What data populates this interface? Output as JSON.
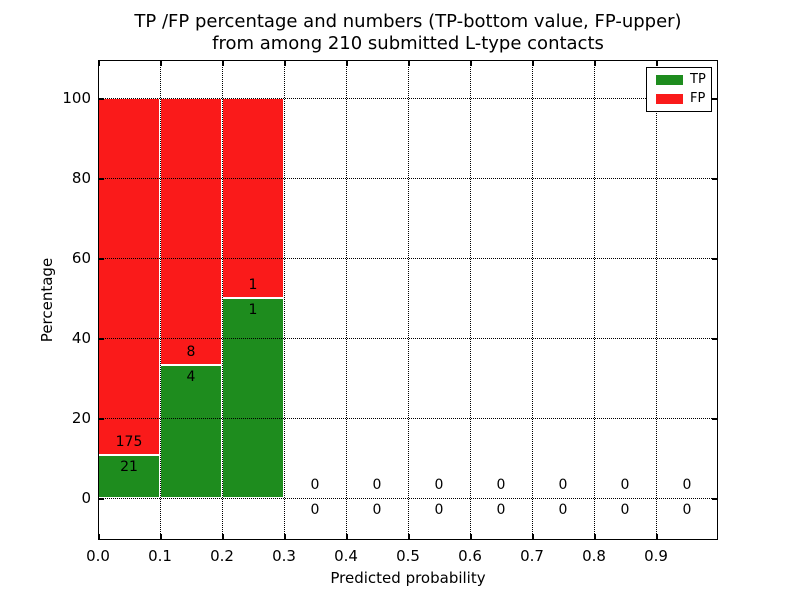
{
  "chart_data": {
    "type": "bar",
    "stacked": true,
    "title_lines": [
      "TP /FP percentage and numbers (TP-bottom value, FP-upper)",
      "from among 210 submitted L-type contacts"
    ],
    "xlabel": "Predicted probability",
    "ylabel": "Percentage",
    "xlim": [
      0.0,
      1.0
    ],
    "ylim": [
      -10.5,
      109.5
    ],
    "xticks": [
      0.0,
      0.1,
      0.2,
      0.3,
      0.4,
      0.5,
      0.6,
      0.7,
      0.8,
      0.9
    ],
    "yticks": [
      0,
      20,
      40,
      60,
      80,
      100
    ],
    "grid_style": "dotted",
    "total_contacts": 210,
    "bins": [
      {
        "range": [
          0.0,
          0.1
        ],
        "tp": 21,
        "fp": 175,
        "tp_pct": 10.71,
        "fp_pct": 89.29
      },
      {
        "range": [
          0.1,
          0.2
        ],
        "tp": 4,
        "fp": 8,
        "tp_pct": 33.33,
        "fp_pct": 66.67
      },
      {
        "range": [
          0.2,
          0.3
        ],
        "tp": 1,
        "fp": 1,
        "tp_pct": 50.0,
        "fp_pct": 50.0
      },
      {
        "range": [
          0.3,
          0.4
        ],
        "tp": 0,
        "fp": 0,
        "tp_pct": 0,
        "fp_pct": 0
      },
      {
        "range": [
          0.4,
          0.5
        ],
        "tp": 0,
        "fp": 0,
        "tp_pct": 0,
        "fp_pct": 0
      },
      {
        "range": [
          0.5,
          0.6
        ],
        "tp": 0,
        "fp": 0,
        "tp_pct": 0,
        "fp_pct": 0
      },
      {
        "range": [
          0.6,
          0.7
        ],
        "tp": 0,
        "fp": 0,
        "tp_pct": 0,
        "fp_pct": 0
      },
      {
        "range": [
          0.7,
          0.8
        ],
        "tp": 0,
        "fp": 0,
        "tp_pct": 0,
        "fp_pct": 0
      },
      {
        "range": [
          0.8,
          0.9
        ],
        "tp": 0,
        "fp": 0,
        "tp_pct": 0,
        "fp_pct": 0
      },
      {
        "range": [
          0.9,
          1.0
        ],
        "tp": 0,
        "fp": 0,
        "tp_pct": 0,
        "fp_pct": 0
      }
    ],
    "colors": {
      "tp": "#1E8C1E",
      "fp": "#FA1A1A",
      "grid": "#000000",
      "text": "#000000"
    },
    "legend": {
      "position": "upper right",
      "entries": [
        {
          "label": "TP",
          "color": "#1E8C1E"
        },
        {
          "label": "FP",
          "color": "#FA1A1A"
        }
      ]
    }
  }
}
